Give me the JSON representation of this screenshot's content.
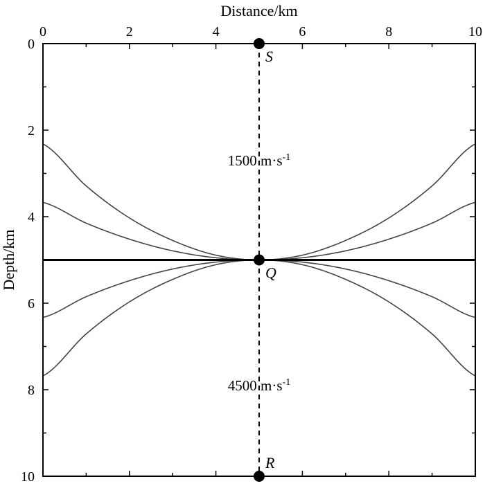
{
  "chart_data": {
    "type": "line",
    "xlabel": "Distance/km",
    "ylabel": "Depth/km",
    "xlim": [
      0,
      10
    ],
    "ylim": [
      0,
      10
    ],
    "y_inverted": true,
    "x_axis_position": "top",
    "x_ticks": [
      0,
      2,
      4,
      6,
      8,
      10
    ],
    "y_ticks": [
      0,
      2,
      4,
      6,
      8,
      10
    ],
    "x_tick_labels": [
      "0",
      "2",
      "4",
      "6",
      "8",
      "10"
    ],
    "y_tick_labels": [
      "0",
      "2",
      "4",
      "6",
      "8",
      "10"
    ],
    "grid": false,
    "interface": {
      "depth": 5.0,
      "x": [
        0,
        10
      ],
      "y": [
        5.0,
        5.0
      ]
    },
    "vertical_profile": {
      "x": 5.0,
      "y": [
        0,
        10
      ],
      "style": "dashed"
    },
    "curves": [
      {
        "x": [
          0,
          1,
          2,
          3,
          4,
          5,
          6,
          7,
          8,
          9,
          10
        ],
        "y": [
          2.32,
          3.29,
          4.03,
          4.55,
          4.89,
          5.0,
          4.89,
          4.55,
          4.03,
          3.29,
          2.32
        ]
      },
      {
        "x": [
          0,
          1,
          2,
          3,
          4,
          5,
          6,
          7,
          8,
          9,
          10
        ],
        "y": [
          3.67,
          4.15,
          4.52,
          4.79,
          4.95,
          5.0,
          4.95,
          4.79,
          4.52,
          4.15,
          3.67
        ]
      },
      {
        "x": [
          0,
          1,
          2,
          3,
          4,
          5,
          6,
          7,
          8,
          9,
          10
        ],
        "y": [
          6.33,
          5.85,
          5.48,
          5.21,
          5.05,
          5.0,
          5.05,
          5.21,
          5.48,
          5.85,
          6.33
        ]
      },
      {
        "x": [
          0,
          1,
          2,
          3,
          4,
          5,
          6,
          7,
          8,
          9,
          10
        ],
        "y": [
          7.68,
          6.71,
          5.97,
          5.45,
          5.11,
          5.0,
          5.11,
          5.45,
          5.97,
          6.71,
          7.68
        ]
      }
    ],
    "points": [
      {
        "label": "S",
        "x": 5.0,
        "y": 0.0
      },
      {
        "label": "Q",
        "x": 5.0,
        "y": 5.0
      },
      {
        "label": "R",
        "x": 5.0,
        "y": 10.0
      }
    ],
    "annotations": [
      {
        "text": "1500 m·s",
        "superscript": "-1",
        "x": 5.0,
        "y": 2.7
      },
      {
        "text": "4500 m·s",
        "superscript": "-1",
        "x": 5.0,
        "y": 7.9
      }
    ]
  }
}
